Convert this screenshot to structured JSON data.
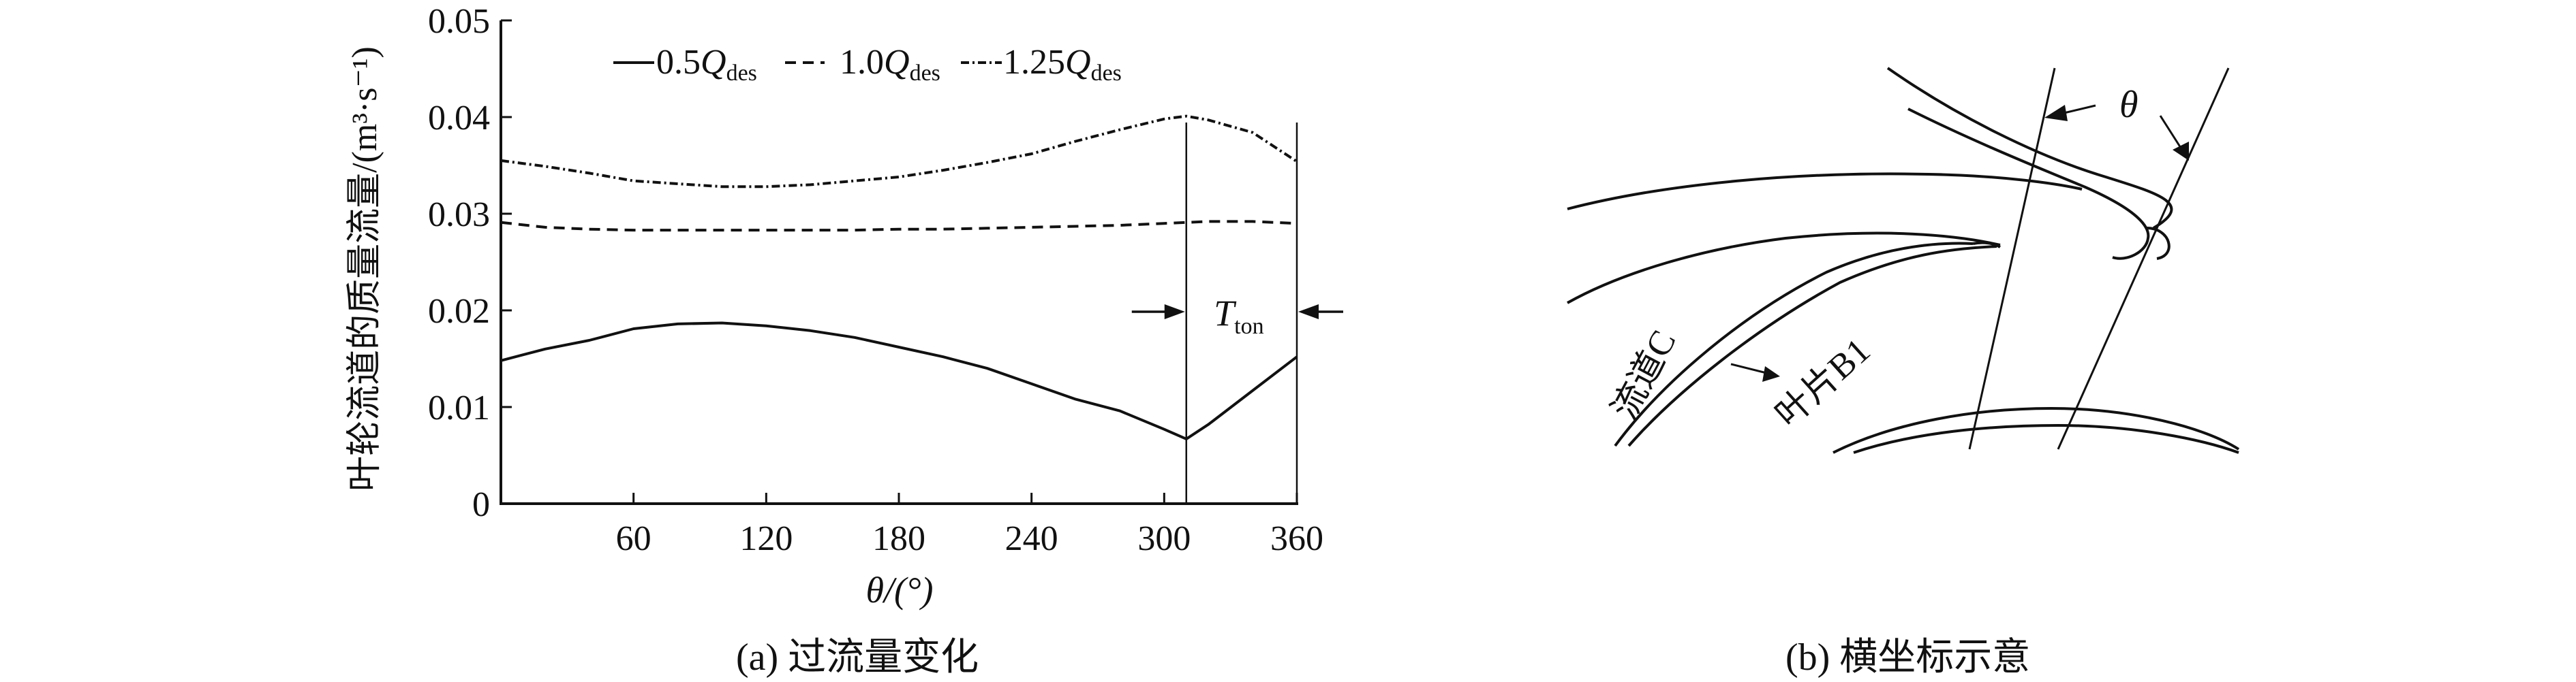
{
  "chart_data": {
    "type": "line",
    "ylabel": "叶轮流道的质量流量/(m³·s⁻¹)",
    "xlabel": "θ/(°)",
    "xlim": [
      0,
      360
    ],
    "ylim": [
      0,
      0.05
    ],
    "xticks": [
      60,
      120,
      180,
      240,
      300,
      360
    ],
    "yticks": [
      0,
      0.01,
      0.02,
      0.03,
      0.04,
      0.05
    ],
    "ytick_labels": [
      "0",
      "0.01",
      "0.02",
      "0.03",
      "0.04",
      "0.05"
    ],
    "grid": false,
    "legend_position": "top",
    "series": [
      {
        "name": "0.5Q_des",
        "style": "solid",
        "x": [
          0,
          20,
          40,
          60,
          80,
          100,
          120,
          140,
          160,
          180,
          200,
          220,
          240,
          260,
          280,
          300,
          310,
          320,
          340,
          360
        ],
        "y": [
          0.0148,
          0.016,
          0.0169,
          0.0181,
          0.0186,
          0.0187,
          0.0184,
          0.0179,
          0.0172,
          0.0162,
          0.0152,
          0.014,
          0.0124,
          0.0108,
          0.0096,
          0.0077,
          0.0067,
          0.0082,
          0.0117,
          0.0152
        ]
      },
      {
        "name": "1.0Q_des",
        "style": "dashed",
        "x": [
          0,
          20,
          40,
          60,
          80,
          100,
          120,
          140,
          160,
          180,
          200,
          220,
          240,
          260,
          280,
          300,
          310,
          320,
          340,
          360
        ],
        "y": [
          0.0291,
          0.0286,
          0.0284,
          0.0283,
          0.0283,
          0.0283,
          0.0283,
          0.0283,
          0.0283,
          0.0284,
          0.0284,
          0.0285,
          0.0286,
          0.0287,
          0.0288,
          0.029,
          0.0291,
          0.0292,
          0.0292,
          0.029
        ]
      },
      {
        "name": "1.25Q_des",
        "style": "dashdot",
        "x": [
          0,
          20,
          40,
          60,
          80,
          100,
          120,
          140,
          160,
          180,
          200,
          220,
          240,
          260,
          280,
          300,
          310,
          320,
          340,
          360
        ],
        "y": [
          0.0355,
          0.0349,
          0.0342,
          0.0334,
          0.0331,
          0.0328,
          0.0328,
          0.033,
          0.0334,
          0.0338,
          0.0345,
          0.0353,
          0.0362,
          0.0375,
          0.0387,
          0.0398,
          0.0401,
          0.0397,
          0.0384,
          0.0354
        ]
      }
    ],
    "legend_entries": [
      {
        "prefix": "0.5",
        "sym": "Q",
        "sub": "des"
      },
      {
        "prefix": "1.0",
        "sym": "Q",
        "sub": "des"
      },
      {
        "prefix": "1.25",
        "sym": "Q",
        "sub": "des"
      }
    ],
    "annotation": {
      "sym": "T",
      "sub": "ton",
      "from": 310,
      "to": 360
    }
  },
  "captions": {
    "a": "(a) 过流量变化",
    "b": "(b) 横坐标示意"
  },
  "diagram": {
    "theta_label": "θ",
    "passage_label": "流道C",
    "blade_label": "叶片B1"
  },
  "colors": {
    "ink": "#111111",
    "background": "#ffffff"
  }
}
